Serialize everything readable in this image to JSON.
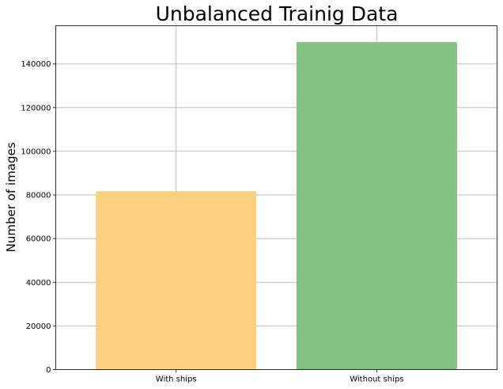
{
  "chart_data": {
    "type": "bar",
    "title": "Unbalanced Trainig Data",
    "xlabel": "",
    "ylabel": "Number of images",
    "categories": [
      "With ships",
      "Without ships"
    ],
    "values": [
      81723,
      150000
    ],
    "colors": [
      "#fdcf80",
      "#80c080"
    ],
    "bar_alpha": 1,
    "ylim": [
      0,
      157500
    ],
    "yticks": [
      0,
      20000,
      40000,
      60000,
      80000,
      100000,
      120000,
      140000
    ],
    "grid": true,
    "legend": "none"
  }
}
